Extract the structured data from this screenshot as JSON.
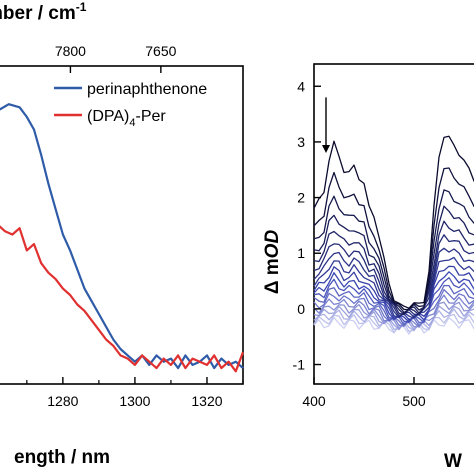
{
  "chart_data": [
    {
      "type": "line",
      "panel": "left",
      "top_axis_label": "mber / cm",
      "top_axis_label_sup": "-1",
      "top_ticks": [
        "7800",
        "7650"
      ],
      "top_tick_wavelength": [
        1282.1,
        1307.2
      ],
      "xlabel": "ength / nm",
      "xticks": [
        1280,
        1300,
        1320
      ],
      "xlim": [
        1262,
        1330
      ],
      "ylim": [
        0,
        1.0
      ],
      "legend_position": "top-right",
      "legend": [
        {
          "label_main": "perinaphthenone",
          "label_sub": "",
          "label_tail": "",
          "color": "#2f5ca8"
        },
        {
          "label_main": "(DPA)",
          "label_sub": "4",
          "label_tail": "-Per",
          "color": "#e03030"
        }
      ],
      "series": [
        {
          "name": "perinaphthenone",
          "color": "#2f5ca8",
          "x": [
            1262,
            1265,
            1268,
            1270,
            1272,
            1274,
            1276,
            1278,
            1280,
            1282,
            1284,
            1286,
            1288,
            1290,
            1292,
            1294,
            1296,
            1298,
            1300,
            1302,
            1304,
            1306,
            1308,
            1310,
            1312,
            1314,
            1316,
            1318,
            1320,
            1322,
            1324,
            1326,
            1328,
            1330
          ],
          "y": [
            0.86,
            0.88,
            0.87,
            0.84,
            0.8,
            0.72,
            0.63,
            0.55,
            0.47,
            0.42,
            0.36,
            0.3,
            0.26,
            0.22,
            0.18,
            0.14,
            0.11,
            0.09,
            0.07,
            0.09,
            0.06,
            0.09,
            0.07,
            0.08,
            0.05,
            0.09,
            0.06,
            0.07,
            0.09,
            0.05,
            0.08,
            0.06,
            0.07,
            0.05
          ]
        },
        {
          "name": "(DPA)4-Per",
          "color": "#e03030",
          "x": [
            1262,
            1264,
            1266,
            1268,
            1270,
            1272,
            1274,
            1276,
            1278,
            1280,
            1282,
            1284,
            1286,
            1288,
            1290,
            1292,
            1294,
            1296,
            1298,
            1300,
            1302,
            1304,
            1306,
            1308,
            1310,
            1312,
            1314,
            1316,
            1318,
            1320,
            1322,
            1324,
            1326,
            1328,
            1330
          ],
          "y": [
            0.5,
            0.48,
            0.47,
            0.49,
            0.42,
            0.44,
            0.38,
            0.35,
            0.33,
            0.3,
            0.28,
            0.25,
            0.23,
            0.2,
            0.17,
            0.14,
            0.12,
            0.09,
            0.08,
            0.06,
            0.09,
            0.07,
            0.05,
            0.08,
            0.06,
            0.09,
            0.05,
            0.08,
            0.07,
            0.06,
            0.09,
            0.05,
            0.07,
            0.04,
            0.1
          ]
        }
      ]
    },
    {
      "type": "line",
      "panel": "right",
      "ylabel_pre": "Δ m",
      "ylabel_em": "OD",
      "xlabel": "W",
      "xticks": [
        400,
        500
      ],
      "yticks": [
        -1,
        0,
        1,
        2,
        3,
        4
      ],
      "xlim": [
        400,
        570
      ],
      "ylim": [
        -1.35,
        4.4
      ],
      "arrow_at": {
        "x": 412,
        "y_from": 3.8,
        "y_to": 2.8
      },
      "x": [
        400,
        405,
        410,
        415,
        420,
        425,
        430,
        435,
        440,
        445,
        450,
        455,
        460,
        465,
        470,
        475,
        480,
        485,
        490,
        495,
        500,
        505,
        510,
        515,
        520,
        525,
        530,
        535,
        540,
        545,
        550,
        555,
        560,
        565,
        570
      ],
      "shape": [
        0.58,
        0.62,
        0.68,
        0.86,
        0.95,
        0.88,
        0.8,
        0.78,
        0.82,
        0.76,
        0.72,
        0.58,
        0.54,
        0.42,
        0.28,
        0.15,
        0.06,
        0.02,
        0.01,
        0.02,
        0.03,
        0.02,
        0.05,
        0.22,
        0.58,
        0.88,
        1.0,
        0.98,
        0.94,
        0.9,
        0.85,
        0.8,
        0.75,
        0.71,
        0.68
      ],
      "scales": [
        3.12,
        2.55,
        2.15,
        1.85,
        1.6,
        1.4,
        1.22,
        1.06,
        0.92,
        0.8,
        0.7,
        0.6,
        0.51,
        0.43,
        0.36,
        0.3,
        0.24,
        0.18,
        0.12
      ],
      "offset_per_trace": -0.02,
      "color_dark": "#0b0b2e",
      "color_light": "#cdd0f2"
    }
  ]
}
